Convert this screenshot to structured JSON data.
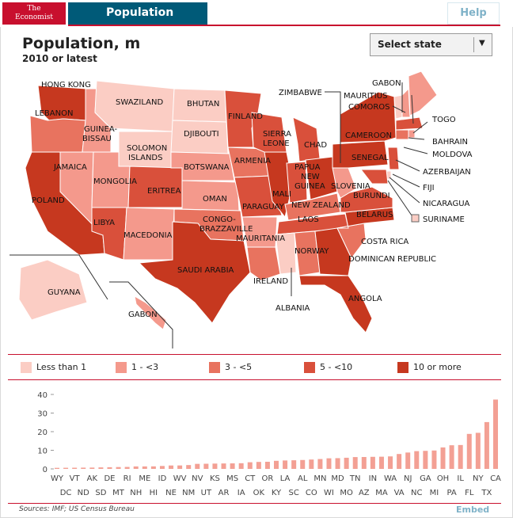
{
  "header": {
    "logo_line1": "The",
    "logo_line2": "Economist",
    "section_title": "Population",
    "help_label": "Help"
  },
  "title": "Population, m",
  "subtitle": "2010 or latest",
  "select": {
    "label": "Select state",
    "arrow": "▼"
  },
  "colors": {
    "brand_red": "#c8102e",
    "title_bar": "#005a78",
    "bin0": "#fbcdc4",
    "bin1": "#f4998c",
    "bin2": "#e8735f",
    "bin3": "#d9503b",
    "bin4": "#c6381f",
    "bar": "#f3a094"
  },
  "legend": [
    {
      "label": "Less than 1",
      "color": "#fbcdc4"
    },
    {
      "label": "1 - <3",
      "color": "#f4998c"
    },
    {
      "label": "3 - <5",
      "color": "#e8735f"
    },
    {
      "label": "5 - <10",
      "color": "#d9503b"
    },
    {
      "label": "10 or more",
      "color": "#c6381f"
    }
  ],
  "map_labels": [
    "HONG KONG",
    "SWAZILAND",
    "BHUTAN",
    "ZIMBABWE",
    "GABON",
    "MAURITIUS",
    "COMOROS",
    "TOGO",
    "LEBANON",
    "GUINEA-",
    "BISSAU",
    "FINLAND",
    "SIERRA",
    "LEONE",
    "CHAD",
    "CAMEROON",
    "BAHRAIN",
    "SOLOMON",
    "ISLANDS",
    "DJIBOUTI",
    "MOLDOVA",
    "JAMAICA",
    "BOTSWANA",
    "ARMENIA",
    "PAPUA",
    "NEW",
    "GUINEA",
    "SENEGAL",
    "AZERBAIJAN",
    "MONGOLIA",
    "ERITREA",
    "OMAN",
    "MALI",
    "SLOVENIA",
    "BURUNDI",
    "FIJI",
    "POLAND",
    "PARAGUAY",
    "NEW ZEALAND",
    "NICARAGUA",
    "LIBYA",
    "CONGO-",
    "BRAZZAVILLE",
    "BELARUS",
    "SURINAME",
    "LAOS",
    "MACEDONIA",
    "MAURITANIA",
    "COSTA RICA",
    "NORWAY",
    "SAUDI ARABIA",
    "DOMINICAN REPUBLIC",
    "IRELAND",
    "GUYANA",
    "ALBANIA",
    "ANGOLA",
    "GABON"
  ],
  "chart_data": {
    "type": "bar",
    "title": "Population, m",
    "subtitle": "2010 or latest",
    "categories": [
      "WY",
      "DC",
      "VT",
      "ND",
      "AK",
      "SD",
      "DE",
      "MT",
      "RI",
      "NH",
      "ME",
      "HI",
      "ID",
      "NE",
      "WV",
      "NM",
      "NV",
      "UT",
      "KS",
      "AR",
      "MS",
      "IA",
      "CT",
      "OK",
      "OR",
      "KY",
      "LA",
      "SC",
      "AL",
      "CO",
      "MN",
      "WI",
      "MD",
      "MO",
      "TN",
      "AZ",
      "IN",
      "MA",
      "WA",
      "VA",
      "NJ",
      "NC",
      "GA",
      "MI",
      "OH",
      "PA",
      "IL",
      "FL",
      "NY",
      "TX",
      "CA"
    ],
    "values": [
      0.56,
      0.6,
      0.63,
      0.67,
      0.71,
      0.81,
      0.9,
      0.99,
      1.05,
      1.32,
      1.33,
      1.36,
      1.57,
      1.83,
      1.85,
      2.06,
      2.7,
      2.76,
      2.85,
      2.92,
      2.97,
      3.05,
      3.57,
      3.75,
      3.83,
      4.34,
      4.53,
      4.63,
      4.78,
      5.03,
      5.3,
      5.69,
      5.77,
      5.99,
      6.35,
      6.39,
      6.48,
      6.55,
      6.72,
      8.0,
      8.79,
      9.54,
      9.69,
      9.88,
      11.54,
      12.7,
      12.83,
      18.8,
      19.38,
      25.15,
      37.25
    ],
    "ylim": [
      0,
      40
    ],
    "yticks": [
      0,
      10,
      20,
      30,
      40
    ],
    "grid": false
  },
  "footer": {
    "source": "Sources: IMF; US Census Bureau",
    "embed_label": "Embed"
  }
}
